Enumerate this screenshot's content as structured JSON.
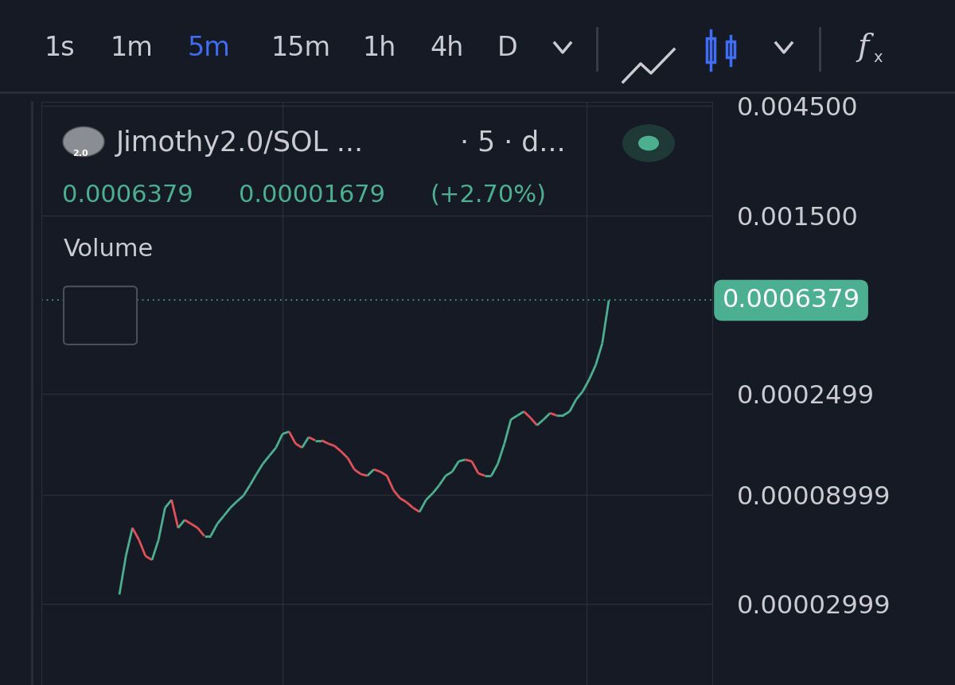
{
  "chart_data": {
    "type": "line",
    "title": "Jimothy2.0/SOL ...",
    "subtitle": "· 5 · d...",
    "values": [
      3.305e-05,
      4.87e-05,
      6.46e-05,
      5.73e-05,
      4.87e-05,
      4.68e-05,
      5.73e-05,
      7.91e-05,
      8.57e-05,
      6.46e-05,
      7e-05,
      6.73e-05,
      6.46e-05,
      5.96e-05,
      5.96e-05,
      6.73e-05,
      7.29e-05,
      7.91e-05,
      8.43e-05,
      8.93e-05,
      9.91e-05,
      0.000111,
      0.0001233,
      0.0001337,
      0.0001449,
      0.0001663,
      0.0001703,
      0.0001509,
      0.0001449,
      0.000161,
      0.0001559,
      0.0001559,
      0.0001509,
      0.0001473,
      0.0001392,
      0.0001305,
      0.0001164,
      0.000111,
      0.0001092,
      0.0001164,
      0.0001137,
      0.0001092,
      9.45e-05,
      8.71e-05,
      8.37e-05,
      7.91e-05,
      7.59e-05,
      8.57e-05,
      9.15e-05,
      9.91e-05,
      0.0001092,
      0.0001137,
      0.0001263,
      0.0001284,
      0.0001263,
      0.0001119,
      0.0001092,
      0.0001092,
      0.0001233,
      0.0001509,
      0.0001922,
      0.0002003,
      0.0002084,
      0.0001955,
      0.0001815,
      0.0001922,
      0.0002051,
      0.0002003,
      0.0002003,
      0.0002084,
      0.0002354,
      0.0002552,
      0.0002879,
      0.000333,
      0.000414,
      0.0006379
    ],
    "log": "y",
    "ylim": [
      1.33e-05,
      0.0047
    ],
    "yticks": [
      {
        "value": 0.0045,
        "label": "0.004500"
      },
      {
        "value": 0.0015,
        "label": "0.001500"
      },
      0.0002499,
      {
        "value": 8.999e-05,
        "label": "0.00008999"
      },
      {
        "value": 2.999e-05,
        "label": "0.00002999"
      }
    ],
    "grid": true,
    "tick_labels": "y",
    "color": "#4caf8f"
  },
  "header": {
    "avatar_text": "2.0",
    "price": "0.0006379",
    "change": "0.00001679",
    "change_pct": "(+2.70%)",
    "volume": "Volume"
  },
  "toolbar": {
    "timeframes": [
      "1s",
      "1m",
      "5m",
      "15m",
      "1h",
      "4h",
      "D"
    ],
    "active": "5m",
    "formula": "fx"
  }
}
